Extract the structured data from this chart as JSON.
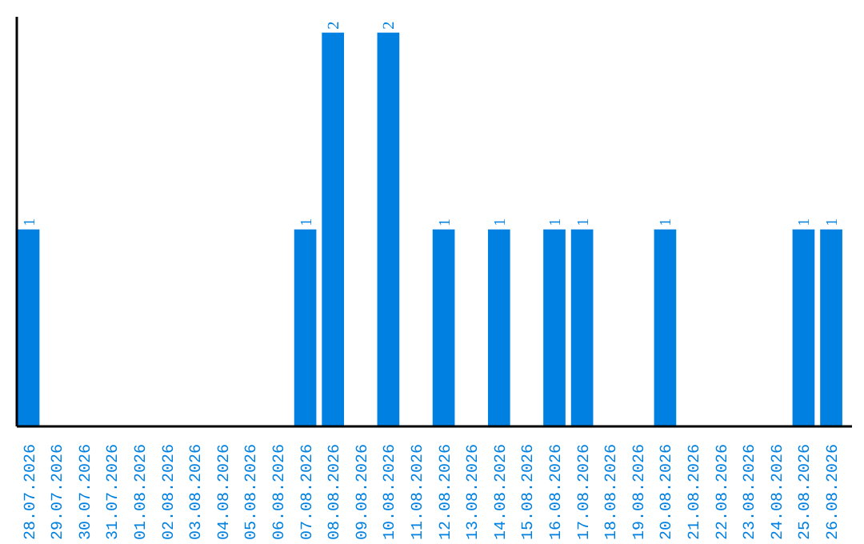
{
  "chart_data": {
    "type": "bar",
    "categories": [
      "28.07.2026",
      "29.07.2026",
      "30.07.2026",
      "31.07.2026",
      "01.08.2026",
      "02.08.2026",
      "03.08.2026",
      "04.08.2026",
      "05.08.2026",
      "06.08.2026",
      "07.08.2026",
      "08.08.2026",
      "09.08.2026",
      "10.08.2026",
      "11.08.2026",
      "12.08.2026",
      "13.08.2026",
      "14.08.2026",
      "15.08.2026",
      "16.08.2026",
      "17.08.2026",
      "18.08.2026",
      "19.08.2026",
      "20.08.2026",
      "21.08.2026",
      "22.08.2026",
      "23.08.2026",
      "24.08.2026",
      "25.08.2026",
      "26.08.2026"
    ],
    "values": [
      1,
      0,
      0,
      0,
      0,
      0,
      0,
      0,
      0,
      0,
      1,
      2,
      0,
      2,
      0,
      1,
      0,
      1,
      0,
      1,
      1,
      0,
      0,
      1,
      0,
      0,
      0,
      0,
      1,
      1
    ],
    "value_labels": [
      "1",
      null,
      null,
      null,
      null,
      null,
      null,
      null,
      null,
      null,
      "1",
      "2",
      null,
      "2",
      null,
      "1",
      null,
      "1",
      null,
      "1",
      "1",
      null,
      null,
      "1",
      null,
      null,
      null,
      null,
      "1",
      "1"
    ],
    "color": "#0080e0",
    "grid": false
  }
}
